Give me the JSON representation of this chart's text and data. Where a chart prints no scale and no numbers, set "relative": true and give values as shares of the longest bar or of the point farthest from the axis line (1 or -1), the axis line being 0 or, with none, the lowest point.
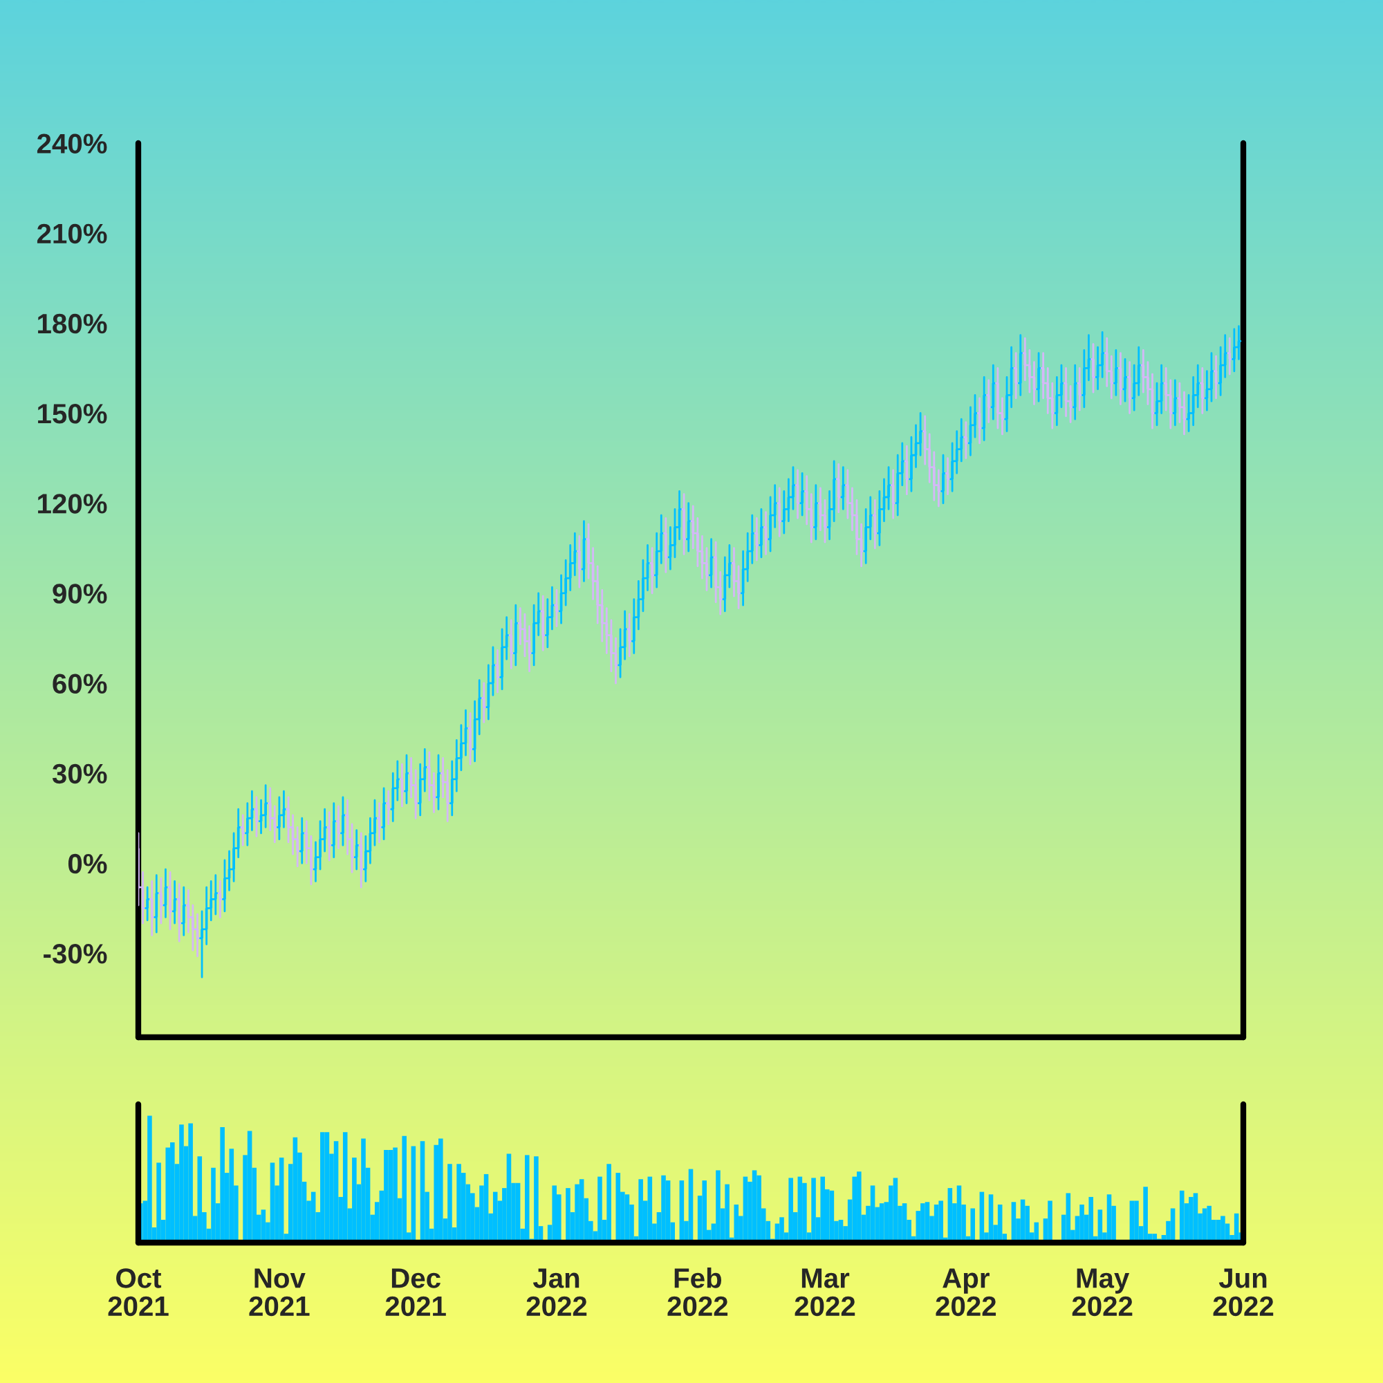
{
  "chart_data": [
    {
      "type": "candlestick",
      "xlim": [
        "2021-10-01",
        "2022-06-01"
      ],
      "ylim": [
        -58,
        240
      ],
      "tick_labels": "y",
      "yticks": [
        {
          "value": -30,
          "label": "-30%"
        },
        {
          "value": 0,
          "label": "0%"
        },
        {
          "value": 30,
          "label": "30%"
        },
        {
          "value": 60,
          "label": "60%"
        },
        {
          "value": 90,
          "label": "90%"
        },
        {
          "value": 120,
          "label": "120%"
        },
        {
          "value": 150,
          "label": "150%"
        },
        {
          "value": 180,
          "label": "180%"
        },
        {
          "value": 210,
          "label": "210%"
        },
        {
          "value": 240,
          "label": "240%"
        }
      ],
      "x": [
        "2021-10-01",
        "2021-10-02",
        "2021-10-03",
        "2021-10-04",
        "2021-10-05",
        "2021-10-06",
        "2021-10-07",
        "2021-10-08",
        "2021-10-09",
        "2021-10-10",
        "2021-10-11",
        "2021-10-12",
        "2021-10-13",
        "2021-10-14",
        "2021-10-15",
        "2021-10-16",
        "2021-10-17",
        "2021-10-18",
        "2021-10-19",
        "2021-10-20",
        "2021-10-21",
        "2021-10-22",
        "2021-10-23",
        "2021-10-24",
        "2021-10-25",
        "2021-10-26",
        "2021-10-27",
        "2021-10-28",
        "2021-10-29",
        "2021-10-30",
        "2021-10-31",
        "2021-11-01",
        "2021-11-02",
        "2021-11-03",
        "2021-11-04",
        "2021-11-05",
        "2021-11-06",
        "2021-11-07",
        "2021-11-08",
        "2021-11-09",
        "2021-11-10",
        "2021-11-11",
        "2021-11-12",
        "2021-11-13",
        "2021-11-14",
        "2021-11-15",
        "2021-11-16",
        "2021-11-17",
        "2021-11-18",
        "2021-11-19",
        "2021-11-20",
        "2021-11-21",
        "2021-11-22",
        "2021-11-23",
        "2021-11-24",
        "2021-11-25",
        "2021-11-26",
        "2021-11-27",
        "2021-11-28",
        "2021-11-29",
        "2021-11-30",
        "2021-12-01",
        "2021-12-02",
        "2021-12-03",
        "2021-12-04",
        "2021-12-05",
        "2021-12-06",
        "2021-12-07",
        "2021-12-08",
        "2021-12-09",
        "2021-12-10",
        "2021-12-11",
        "2021-12-12",
        "2021-12-13",
        "2021-12-14",
        "2021-12-15",
        "2021-12-16",
        "2021-12-17",
        "2021-12-18",
        "2021-12-19",
        "2021-12-20",
        "2021-12-21",
        "2021-12-22",
        "2021-12-23",
        "2021-12-24",
        "2021-12-25",
        "2021-12-26",
        "2021-12-27",
        "2021-12-28",
        "2021-12-29",
        "2021-12-30",
        "2021-12-31",
        "2022-01-01",
        "2022-01-02",
        "2022-01-03",
        "2022-01-04",
        "2022-01-05",
        "2022-01-06",
        "2022-01-07",
        "2022-01-08",
        "2022-01-09",
        "2022-01-10",
        "2022-01-11",
        "2022-01-12",
        "2022-01-13",
        "2022-01-14",
        "2022-01-15",
        "2022-01-16",
        "2022-01-17",
        "2022-01-18",
        "2022-01-19",
        "2022-01-20",
        "2022-01-21",
        "2022-01-22",
        "2022-01-23",
        "2022-01-24",
        "2022-01-25",
        "2022-01-26",
        "2022-01-27",
        "2022-01-28",
        "2022-01-29",
        "2022-01-30",
        "2022-01-31",
        "2022-02-01",
        "2022-02-02",
        "2022-02-03",
        "2022-02-04",
        "2022-02-05",
        "2022-02-06",
        "2022-02-07",
        "2022-02-08",
        "2022-02-09",
        "2022-02-10",
        "2022-02-11",
        "2022-02-12",
        "2022-02-13",
        "2022-02-14",
        "2022-02-15",
        "2022-02-16",
        "2022-02-17",
        "2022-02-18",
        "2022-02-19",
        "2022-02-20",
        "2022-02-21",
        "2022-02-22",
        "2022-02-23",
        "2022-02-24",
        "2022-02-25",
        "2022-02-26",
        "2022-02-27",
        "2022-02-28",
        "2022-03-01",
        "2022-03-02",
        "2022-03-03",
        "2022-03-04",
        "2022-03-05",
        "2022-03-06",
        "2022-03-07",
        "2022-03-08",
        "2022-03-09",
        "2022-03-10",
        "2022-03-11",
        "2022-03-12",
        "2022-03-13",
        "2022-03-14",
        "2022-03-15",
        "2022-03-16",
        "2022-03-17",
        "2022-03-18",
        "2022-03-19",
        "2022-03-20",
        "2022-03-21",
        "2022-03-22",
        "2022-03-23",
        "2022-03-24",
        "2022-03-25",
        "2022-03-26",
        "2022-03-27",
        "2022-03-28",
        "2022-03-29",
        "2022-03-30",
        "2022-03-31",
        "2022-04-01",
        "2022-04-02",
        "2022-04-03",
        "2022-04-04",
        "2022-04-05",
        "2022-04-06",
        "2022-04-07",
        "2022-04-08",
        "2022-04-09",
        "2022-04-10",
        "2022-04-11",
        "2022-04-12",
        "2022-04-13",
        "2022-04-14",
        "2022-04-15",
        "2022-04-16",
        "2022-04-17",
        "2022-04-18",
        "2022-04-19",
        "2022-04-20",
        "2022-04-21",
        "2022-04-22",
        "2022-04-23",
        "2022-04-24",
        "2022-04-25",
        "2022-04-26",
        "2022-04-27",
        "2022-04-28",
        "2022-04-29",
        "2022-04-30",
        "2022-05-01",
        "2022-05-02",
        "2022-05-03",
        "2022-05-04",
        "2022-05-05",
        "2022-05-06",
        "2022-05-07",
        "2022-05-08",
        "2022-05-09",
        "2022-05-10",
        "2022-05-11",
        "2022-05-12",
        "2022-05-13",
        "2022-05-14",
        "2022-05-15",
        "2022-05-16",
        "2022-05-17",
        "2022-05-18",
        "2022-05-19",
        "2022-05-20",
        "2022-05-21",
        "2022-05-22",
        "2022-05-23",
        "2022-05-24",
        "2022-05-25",
        "2022-05-26",
        "2022-05-27",
        "2022-05-28",
        "2022-05-29",
        "2022-05-30",
        "2022-05-31"
      ],
      "ohlc": [
        [
          5,
          10,
          -14,
          -8
        ],
        [
          -8,
          -3,
          -20,
          -15
        ],
        [
          -15,
          -8,
          -19,
          -12
        ],
        [
          -12,
          -6,
          -24,
          -18
        ],
        [
          -18,
          -4,
          -23,
          -10
        ],
        [
          -10,
          -5,
          -20,
          -14
        ],
        [
          -14,
          -2,
          -18,
          -8
        ],
        [
          -8,
          -3,
          -22,
          -16
        ],
        [
          -16,
          -6,
          -20,
          -12
        ],
        [
          -12,
          -7,
          -26,
          -20
        ],
        [
          -20,
          -8,
          -24,
          -14
        ],
        [
          -14,
          -9,
          -23,
          -18
        ],
        [
          -18,
          -14,
          -29,
          -22
        ],
        [
          -22,
          -17,
          -31,
          -25
        ],
        [
          -25,
          -16,
          -38,
          -22
        ],
        [
          -22,
          -8,
          -27,
          -15
        ],
        [
          -15,
          -6,
          -19,
          -12
        ],
        [
          -12,
          -4,
          -17,
          -10
        ],
        [
          -10,
          -6,
          -18,
          -12
        ],
        [
          -12,
          1,
          -16,
          -5
        ],
        [
          -5,
          4,
          -9,
          -2
        ],
        [
          -2,
          10,
          -6,
          5
        ],
        [
          5,
          18,
          2,
          12
        ],
        [
          12,
          16,
          6,
          10
        ],
        [
          10,
          20,
          6,
          15
        ],
        [
          15,
          24,
          11,
          18
        ],
        [
          18,
          22,
          9,
          14
        ],
        [
          14,
          21,
          10,
          16
        ],
        [
          16,
          26,
          12,
          20
        ],
        [
          20,
          25,
          11,
          15
        ],
        [
          15,
          19,
          7,
          12
        ],
        [
          12,
          22,
          8,
          16
        ],
        [
          16,
          24,
          12,
          18
        ],
        [
          18,
          22,
          7,
          12
        ],
        [
          12,
          16,
          3,
          8
        ],
        [
          8,
          12,
          -1,
          4
        ],
        [
          4,
          15,
          0,
          10
        ],
        [
          10,
          14,
          0,
          5
        ],
        [
          5,
          9,
          -7,
          -2
        ],
        [
          -2,
          7,
          -6,
          2
        ],
        [
          2,
          14,
          -2,
          8
        ],
        [
          8,
          18,
          4,
          12
        ],
        [
          12,
          17,
          1,
          6
        ],
        [
          6,
          20,
          2,
          14
        ],
        [
          14,
          19,
          5,
          10
        ],
        [
          10,
          22,
          6,
          16
        ],
        [
          16,
          21,
          3,
          8
        ],
        [
          8,
          13,
          -3,
          2
        ],
        [
          2,
          11,
          -2,
          6
        ],
        [
          6,
          10,
          -8,
          -2
        ],
        [
          -2,
          9,
          -6,
          4
        ],
        [
          4,
          15,
          0,
          10
        ],
        [
          10,
          21,
          6,
          15
        ],
        [
          15,
          20,
          7,
          12
        ],
        [
          12,
          25,
          8,
          20
        ],
        [
          20,
          24,
          13,
          18
        ],
        [
          18,
          30,
          14,
          25
        ],
        [
          25,
          34,
          21,
          28
        ],
        [
          28,
          33,
          19,
          24
        ],
        [
          24,
          36,
          20,
          30
        ],
        [
          30,
          35,
          22,
          26
        ],
        [
          26,
          31,
          15,
          20
        ],
        [
          20,
          33,
          16,
          28
        ],
        [
          28,
          38,
          24,
          32
        ],
        [
          32,
          37,
          21,
          26
        ],
        [
          26,
          30,
          17,
          22
        ],
        [
          22,
          36,
          18,
          30
        ],
        [
          30,
          35,
          22,
          27
        ],
        [
          27,
          31,
          14,
          20
        ],
        [
          20,
          34,
          16,
          28
        ],
        [
          28,
          41,
          24,
          35
        ],
        [
          35,
          46,
          31,
          40
        ],
        [
          40,
          51,
          36,
          45
        ],
        [
          45,
          50,
          33,
          38
        ],
        [
          38,
          54,
          34,
          48
        ],
        [
          48,
          61,
          43,
          55
        ],
        [
          55,
          60,
          47,
          52
        ],
        [
          52,
          66,
          48,
          60
        ],
        [
          60,
          72,
          56,
          66
        ],
        [
          66,
          71,
          57,
          62
        ],
        [
          62,
          78,
          58,
          72
        ],
        [
          72,
          82,
          68,
          76
        ],
        [
          76,
          81,
          65,
          70
        ],
        [
          70,
          86,
          66,
          80
        ],
        [
          80,
          85,
          73,
          78
        ],
        [
          78,
          83,
          69,
          74
        ],
        [
          74,
          79,
          64,
          70
        ],
        [
          70,
          86,
          66,
          80
        ],
        [
          80,
          90,
          76,
          84
        ],
        [
          84,
          89,
          71,
          76
        ],
        [
          76,
          88,
          72,
          82
        ],
        [
          82,
          92,
          78,
          86
        ],
        [
          86,
          91,
          79,
          84
        ],
        [
          84,
          96,
          80,
          90
        ],
        [
          90,
          101,
          86,
          95
        ],
        [
          95,
          106,
          91,
          100
        ],
        [
          100,
          110,
          96,
          104
        ],
        [
          104,
          109,
          92,
          98
        ],
        [
          98,
          114,
          94,
          108
        ],
        [
          108,
          113,
          95,
          100
        ],
        [
          100,
          105,
          88,
          94
        ],
        [
          94,
          99,
          80,
          86
        ],
        [
          86,
          91,
          74,
          80
        ],
        [
          80,
          85,
          70,
          76
        ],
        [
          76,
          81,
          64,
          70
        ],
        [
          70,
          75,
          60,
          66
        ],
        [
          66,
          78,
          62,
          72
        ],
        [
          72,
          84,
          68,
          78
        ],
        [
          78,
          83,
          69,
          74
        ],
        [
          74,
          88,
          70,
          82
        ],
        [
          82,
          94,
          78,
          88
        ],
        [
          88,
          101,
          84,
          95
        ],
        [
          95,
          106,
          91,
          100
        ],
        [
          100,
          105,
          90,
          96
        ],
        [
          96,
          110,
          92,
          104
        ],
        [
          104,
          116,
          100,
          110
        ],
        [
          110,
          115,
          97,
          102
        ],
        [
          102,
          112,
          98,
          106
        ],
        [
          106,
          118,
          102,
          112
        ],
        [
          112,
          124,
          108,
          118
        ],
        [
          118,
          123,
          103,
          108
        ],
        [
          108,
          120,
          104,
          114
        ],
        [
          114,
          119,
          105,
          110
        ],
        [
          110,
          115,
          99,
          104
        ],
        [
          104,
          109,
          95,
          100
        ],
        [
          100,
          105,
          91,
          96
        ],
        [
          96,
          108,
          92,
          102
        ],
        [
          102,
          107,
          87,
          92
        ],
        [
          92,
          97,
          83,
          88
        ],
        [
          88,
          102,
          84,
          96
        ],
        [
          96,
          106,
          92,
          100
        ],
        [
          100,
          105,
          89,
          94
        ],
        [
          94,
          99,
          85,
          90
        ],
        [
          90,
          104,
          86,
          98
        ],
        [
          98,
          110,
          94,
          104
        ],
        [
          104,
          116,
          100,
          110
        ],
        [
          110,
          115,
          101,
          106
        ],
        [
          106,
          118,
          102,
          112
        ],
        [
          112,
          117,
          103,
          108
        ],
        [
          108,
          122,
          104,
          116
        ],
        [
          116,
          126,
          112,
          120
        ],
        [
          120,
          125,
          109,
          114
        ],
        [
          114,
          124,
          110,
          118
        ],
        [
          118,
          128,
          114,
          122
        ],
        [
          122,
          132,
          118,
          126
        ],
        [
          126,
          131,
          115,
          120
        ],
        [
          120,
          130,
          116,
          124
        ],
        [
          124,
          129,
          113,
          118
        ],
        [
          118,
          123,
          107,
          112
        ],
        [
          112,
          126,
          108,
          120
        ],
        [
          120,
          125,
          111,
          116
        ],
        [
          116,
          121,
          107,
          112
        ],
        [
          112,
          124,
          108,
          118
        ],
        [
          118,
          134,
          114,
          128
        ],
        [
          128,
          133,
          117,
          122
        ],
        [
          122,
          132,
          118,
          126
        ],
        [
          126,
          131,
          115,
          120
        ],
        [
          120,
          125,
          111,
          116
        ],
        [
          116,
          121,
          103,
          108
        ],
        [
          108,
          113,
          99,
          104
        ],
        [
          104,
          118,
          100,
          112
        ],
        [
          112,
          122,
          108,
          116
        ],
        [
          116,
          121,
          105,
          110
        ],
        [
          110,
          124,
          106,
          118
        ],
        [
          118,
          128,
          114,
          122
        ],
        [
          122,
          132,
          118,
          126
        ],
        [
          126,
          131,
          115,
          120
        ],
        [
          120,
          136,
          116,
          130
        ],
        [
          130,
          140,
          126,
          134
        ],
        [
          134,
          139,
          123,
          128
        ],
        [
          128,
          142,
          124,
          136
        ],
        [
          136,
          146,
          132,
          140
        ],
        [
          140,
          150,
          136,
          144
        ],
        [
          144,
          149,
          133,
          138
        ],
        [
          138,
          143,
          127,
          132
        ],
        [
          132,
          137,
          121,
          126
        ],
        [
          126,
          131,
          119,
          124
        ],
        [
          124,
          136,
          120,
          130
        ],
        [
          130,
          135,
          123,
          128
        ],
        [
          128,
          140,
          124,
          134
        ],
        [
          134,
          144,
          130,
          138
        ],
        [
          138,
          148,
          134,
          142
        ],
        [
          142,
          147,
          135,
          140
        ],
        [
          140,
          152,
          136,
          146
        ],
        [
          146,
          156,
          142,
          150
        ],
        [
          150,
          155,
          140,
          145
        ],
        [
          145,
          162,
          141,
          156
        ],
        [
          156,
          161,
          147,
          152
        ],
        [
          152,
          166,
          148,
          160
        ],
        [
          160,
          165,
          145,
          150
        ],
        [
          150,
          155,
          143,
          148
        ],
        [
          148,
          162,
          144,
          156
        ],
        [
          156,
          172,
          152,
          165
        ],
        [
          165,
          170,
          155,
          160
        ],
        [
          160,
          176,
          156,
          170
        ],
        [
          170,
          175,
          161,
          166
        ],
        [
          166,
          171,
          157,
          162
        ],
        [
          162,
          167,
          153,
          158
        ],
        [
          158,
          170,
          154,
          165
        ],
        [
          165,
          170,
          155,
          160
        ],
        [
          160,
          165,
          150,
          155
        ],
        [
          155,
          160,
          145,
          150
        ],
        [
          150,
          162,
          146,
          156
        ],
        [
          156,
          166,
          152,
          160
        ],
        [
          160,
          165,
          149,
          154
        ],
        [
          154,
          159,
          147,
          152
        ],
        [
          152,
          166,
          148,
          160
        ],
        [
          160,
          165,
          151,
          156
        ],
        [
          156,
          171,
          152,
          165
        ],
        [
          165,
          176,
          161,
          168
        ],
        [
          168,
          173,
          157,
          162
        ],
        [
          162,
          172,
          158,
          166
        ],
        [
          166,
          177,
          162,
          170
        ],
        [
          170,
          175,
          159,
          164
        ],
        [
          164,
          169,
          155,
          160
        ],
        [
          160,
          171,
          156,
          165
        ],
        [
          165,
          170,
          153,
          158
        ],
        [
          158,
          168,
          154,
          162
        ],
        [
          162,
          167,
          150,
          155
        ],
        [
          155,
          166,
          151,
          160
        ],
        [
          160,
          172,
          156,
          166
        ],
        [
          166,
          171,
          157,
          162
        ],
        [
          162,
          167,
          153,
          158
        ],
        [
          158,
          163,
          145,
          150
        ],
        [
          150,
          160,
          146,
          154
        ],
        [
          154,
          166,
          150,
          160
        ],
        [
          160,
          165,
          151,
          156
        ],
        [
          156,
          161,
          145,
          150
        ],
        [
          150,
          161,
          146,
          155
        ],
        [
          155,
          160,
          147,
          152
        ],
        [
          152,
          157,
          143,
          148
        ],
        [
          148,
          156,
          144,
          150
        ],
        [
          150,
          162,
          146,
          156
        ],
        [
          156,
          166,
          152,
          160
        ],
        [
          160,
          165,
          150,
          155
        ],
        [
          155,
          164,
          151,
          158
        ],
        [
          158,
          170,
          154,
          164
        ],
        [
          164,
          169,
          155,
          160
        ],
        [
          160,
          172,
          156,
          166
        ],
        [
          166,
          176,
          162,
          170
        ],
        [
          170,
          175,
          163,
          168
        ],
        [
          168,
          178,
          164,
          172
        ],
        [
          172,
          179,
          168,
          174
        ]
      ],
      "colors": [
        "#d4b8f7",
        "#d4b8f7",
        "#00bfff",
        "#d4b8f7",
        "#00bfff",
        "#d4b8f7",
        "#00bfff",
        "#d4b8f7",
        "#00bfff",
        "#d4b8f7",
        "#00bfff",
        "#d4b8f7",
        "#d4b8f7",
        "#d4b8f7",
        "#00bfff",
        "#00bfff",
        "#00bfff",
        "#00bfff",
        "#d4b8f7",
        "#00bfff",
        "#00bfff",
        "#00bfff",
        "#00bfff",
        "#d4b8f7",
        "#00bfff",
        "#00bfff",
        "#d4b8f7",
        "#00bfff",
        "#00bfff",
        "#d4b8f7",
        "#d4b8f7",
        "#00bfff",
        "#00bfff",
        "#d4b8f7",
        "#d4b8f7",
        "#d4b8f7",
        "#00bfff",
        "#d4b8f7",
        "#d4b8f7",
        "#00bfff",
        "#00bfff",
        "#00bfff",
        "#d4b8f7",
        "#00bfff",
        "#d4b8f7",
        "#00bfff",
        "#d4b8f7",
        "#d4b8f7",
        "#00bfff",
        "#d4b8f7",
        "#00bfff",
        "#00bfff",
        "#00bfff",
        "#d4b8f7",
        "#00bfff",
        "#d4b8f7",
        "#00bfff",
        "#00bfff",
        "#d4b8f7",
        "#00bfff",
        "#d4b8f7",
        "#d4b8f7",
        "#00bfff",
        "#00bfff",
        "#d4b8f7",
        "#d4b8f7",
        "#00bfff",
        "#d4b8f7",
        "#d4b8f7",
        "#00bfff",
        "#00bfff",
        "#00bfff",
        "#00bfff",
        "#d4b8f7",
        "#00bfff",
        "#00bfff",
        "#d4b8f7",
        "#00bfff",
        "#00bfff",
        "#d4b8f7",
        "#00bfff",
        "#00bfff",
        "#d4b8f7",
        "#00bfff",
        "#d4b8f7",
        "#d4b8f7",
        "#d4b8f7",
        "#00bfff",
        "#00bfff",
        "#d4b8f7",
        "#00bfff",
        "#00bfff",
        "#d4b8f7",
        "#00bfff",
        "#00bfff",
        "#00bfff",
        "#00bfff",
        "#d4b8f7",
        "#00bfff",
        "#d4b8f7",
        "#d4b8f7",
        "#d4b8f7",
        "#d4b8f7",
        "#d4b8f7",
        "#d4b8f7",
        "#d4b8f7",
        "#00bfff",
        "#00bfff",
        "#d4b8f7",
        "#00bfff",
        "#00bfff",
        "#00bfff",
        "#00bfff",
        "#d4b8f7",
        "#00bfff",
        "#00bfff",
        "#d4b8f7",
        "#00bfff",
        "#00bfff",
        "#00bfff",
        "#d4b8f7",
        "#00bfff",
        "#d4b8f7",
        "#d4b8f7",
        "#d4b8f7",
        "#d4b8f7",
        "#00bfff",
        "#d4b8f7",
        "#d4b8f7",
        "#00bfff",
        "#00bfff",
        "#d4b8f7",
        "#d4b8f7",
        "#00bfff",
        "#00bfff",
        "#00bfff",
        "#d4b8f7",
        "#00bfff",
        "#d4b8f7",
        "#00bfff",
        "#00bfff",
        "#d4b8f7",
        "#00bfff",
        "#00bfff",
        "#00bfff",
        "#d4b8f7",
        "#00bfff",
        "#d4b8f7",
        "#d4b8f7",
        "#00bfff",
        "#d4b8f7",
        "#d4b8f7",
        "#00bfff",
        "#00bfff",
        "#d4b8f7",
        "#00bfff",
        "#d4b8f7",
        "#d4b8f7",
        "#d4b8f7",
        "#d4b8f7",
        "#00bfff",
        "#00bfff",
        "#d4b8f7",
        "#00bfff",
        "#00bfff",
        "#00bfff",
        "#d4b8f7",
        "#00bfff",
        "#00bfff",
        "#d4b8f7",
        "#00bfff",
        "#00bfff",
        "#00bfff",
        "#d4b8f7",
        "#d4b8f7",
        "#d4b8f7",
        "#d4b8f7",
        "#00bfff",
        "#d4b8f7",
        "#00bfff",
        "#00bfff",
        "#00bfff",
        "#d4b8f7",
        "#00bfff",
        "#00bfff",
        "#d4b8f7",
        "#00bfff",
        "#d4b8f7",
        "#00bfff",
        "#d4b8f7",
        "#d4b8f7",
        "#00bfff",
        "#00bfff",
        "#d4b8f7",
        "#00bfff",
        "#d4b8f7",
        "#d4b8f7",
        "#d4b8f7",
        "#00bfff",
        "#d4b8f7",
        "#d4b8f7",
        "#d4b8f7",
        "#00bfff",
        "#00bfff",
        "#d4b8f7",
        "#d4b8f7",
        "#00bfff",
        "#d4b8f7",
        "#00bfff",
        "#00bfff",
        "#d4b8f7",
        "#00bfff",
        "#00bfff",
        "#d4b8f7",
        "#d4b8f7",
        "#00bfff",
        "#d4b8f7",
        "#00bfff",
        "#d4b8f7",
        "#00bfff",
        "#00bfff",
        "#d4b8f7",
        "#d4b8f7",
        "#d4b8f7",
        "#00bfff",
        "#00bfff",
        "#d4b8f7",
        "#d4b8f7",
        "#00bfff",
        "#d4b8f7",
        "#d4b8f7",
        "#00bfff",
        "#00bfff",
        "#00bfff",
        "#d4b8f7",
        "#00bfff",
        "#00bfff",
        "#d4b8f7",
        "#00bfff",
        "#00bfff",
        "#d4b8f7",
        "#00bfff",
        "#00bfff"
      ]
    },
    {
      "type": "bar",
      "relative": true,
      "color": "#00bfff",
      "xlim": [
        "2021-10-01",
        "2022-06-01"
      ],
      "tick_labels": "x",
      "xticks": [
        {
          "value": "2021-10-01",
          "label": "Oct\n2021"
        },
        {
          "value": "2021-11-01",
          "label": "Nov\n2021"
        },
        {
          "value": "2021-12-01",
          "label": "Dec\n2021"
        },
        {
          "value": "2022-01-01",
          "label": "Jan\n2022"
        },
        {
          "value": "2022-02-01",
          "label": "Feb\n2022"
        },
        {
          "value": "2022-03-01",
          "label": "Mar\n2022"
        },
        {
          "value": "2022-04-01",
          "label": "Apr\n2022"
        },
        {
          "value": "2022-05-01",
          "label": "May\n2022"
        },
        {
          "value": "2022-06-01",
          "label": "Jun\n2022"
        }
      ],
      "x": [
        "2021-10-01",
        "2021-10-02",
        "2021-10-03",
        "2021-10-04",
        "2021-10-05",
        "2021-10-06",
        "2021-10-07",
        "2021-10-08",
        "2021-10-09",
        "2021-10-10",
        "2021-10-11",
        "2021-10-12",
        "2021-10-13",
        "2021-10-14",
        "2021-10-15",
        "2021-10-16",
        "2021-10-17",
        "2021-10-18",
        "2021-10-19",
        "2021-10-20",
        "2021-10-21",
        "2021-10-22",
        "2021-10-23",
        "2021-10-24",
        "2021-10-25",
        "2021-10-26",
        "2021-10-27",
        "2021-10-28",
        "2021-10-29",
        "2021-10-30",
        "2021-10-31",
        "2021-11-01",
        "2021-11-02",
        "2021-11-03",
        "2021-11-04",
        "2021-11-05",
        "2021-11-06",
        "2021-11-07",
        "2021-11-08",
        "2021-11-09",
        "2021-11-10",
        "2021-11-11",
        "2021-11-12",
        "2021-11-13",
        "2021-11-14",
        "2021-11-15",
        "2021-11-16",
        "2021-11-17",
        "2021-11-18",
        "2021-11-19",
        "2021-11-20",
        "2021-11-21",
        "2021-11-22",
        "2021-11-23",
        "2021-11-24",
        "2021-11-25",
        "2021-11-26",
        "2021-11-27",
        "2021-11-28",
        "2021-11-29",
        "2021-11-30",
        "2021-12-01",
        "2021-12-02",
        "2021-12-03",
        "2021-12-04",
        "2021-12-05",
        "2021-12-06",
        "2021-12-07",
        "2021-12-08",
        "2021-12-09",
        "2021-12-10",
        "2021-12-11",
        "2021-12-12",
        "2021-12-13",
        "2021-12-14",
        "2021-12-15",
        "2021-12-16",
        "2021-12-17",
        "2021-12-18",
        "2021-12-19",
        "2021-12-20",
        "2021-12-21",
        "2021-12-22",
        "2021-12-23",
        "2021-12-24",
        "2021-12-25",
        "2021-12-26",
        "2021-12-27",
        "2021-12-28",
        "2021-12-29",
        "2021-12-30",
        "2021-12-31",
        "2022-01-01",
        "2022-01-02",
        "2022-01-03",
        "2022-01-04",
        "2022-01-05",
        "2022-01-06",
        "2022-01-07",
        "2022-01-08",
        "2022-01-09",
        "2022-01-10",
        "2022-01-11",
        "2022-01-12",
        "2022-01-13",
        "2022-01-14",
        "2022-01-15",
        "2022-01-16",
        "2022-01-17",
        "2022-01-18",
        "2022-01-19",
        "2022-01-20",
        "2022-01-21",
        "2022-01-22",
        "2022-01-23",
        "2022-01-24",
        "2022-01-25",
        "2022-01-26",
        "2022-01-27",
        "2022-01-28",
        "2022-01-29",
        "2022-01-30",
        "2022-01-31",
        "2022-02-01",
        "2022-02-02",
        "2022-02-03",
        "2022-02-04",
        "2022-02-05",
        "2022-02-06",
        "2022-02-07",
        "2022-02-08",
        "2022-02-09",
        "2022-02-10",
        "2022-02-11",
        "2022-02-12",
        "2022-02-13",
        "2022-02-14",
        "2022-02-15",
        "2022-02-16",
        "2022-02-17",
        "2022-02-18",
        "2022-02-19",
        "2022-02-20",
        "2022-02-21",
        "2022-02-22",
        "2022-02-23",
        "2022-02-24",
        "2022-02-25",
        "2022-02-26",
        "2022-02-27",
        "2022-02-28",
        "2022-03-01",
        "2022-03-02",
        "2022-03-03",
        "2022-03-04",
        "2022-03-05",
        "2022-03-06",
        "2022-03-07",
        "2022-03-08",
        "2022-03-09",
        "2022-03-10",
        "2022-03-11",
        "2022-03-12",
        "2022-03-13",
        "2022-03-14",
        "2022-03-15",
        "2022-03-16",
        "2022-03-17",
        "2022-03-18",
        "2022-03-19",
        "2022-03-20",
        "2022-03-21",
        "2022-03-22",
        "2022-03-23",
        "2022-03-24",
        "2022-03-25",
        "2022-03-26",
        "2022-03-27",
        "2022-03-28",
        "2022-03-29",
        "2022-03-30",
        "2022-03-31",
        "2022-04-01",
        "2022-04-02",
        "2022-04-03",
        "2022-04-04",
        "2022-04-05",
        "2022-04-06",
        "2022-04-07",
        "2022-04-08",
        "2022-04-09",
        "2022-04-10",
        "2022-04-11",
        "2022-04-12",
        "2022-04-13",
        "2022-04-14",
        "2022-04-15",
        "2022-04-16",
        "2022-04-17",
        "2022-04-18",
        "2022-04-19",
        "2022-04-20",
        "2022-04-21",
        "2022-04-22",
        "2022-04-23",
        "2022-04-24",
        "2022-04-25",
        "2022-04-26",
        "2022-04-27",
        "2022-04-28",
        "2022-04-29",
        "2022-04-30",
        "2022-05-01",
        "2022-05-02",
        "2022-05-03",
        "2022-05-04",
        "2022-05-05",
        "2022-05-06",
        "2022-05-07",
        "2022-05-08",
        "2022-05-09",
        "2022-05-10",
        "2022-05-11",
        "2022-05-12",
        "2022-05-13",
        "2022-05-14",
        "2022-05-15",
        "2022-05-16",
        "2022-05-17",
        "2022-05-18",
        "2022-05-19",
        "2022-05-20",
        "2022-05-21",
        "2022-05-22",
        "2022-05-23",
        "2022-05-24",
        "2022-05-25",
        "2022-05-26",
        "2022-05-27",
        "2022-05-28",
        "2022-05-29",
        "2022-05-30",
        "2022-05-31"
      ],
      "values": [
        0.31,
        0.33,
        1.0,
        0.12,
        0.63,
        0.18,
        0.75,
        0.79,
        0.62,
        0.93,
        0.76,
        0.94,
        0.21,
        0.68,
        0.24,
        0.11,
        0.59,
        0.31,
        0.91,
        0.55,
        0.74,
        0.45,
        0,
        0.69,
        0.88,
        0.59,
        0.22,
        0.26,
        0.16,
        0.63,
        0.45,
        0.67,
        0.07,
        0.62,
        0.83,
        0.71,
        0.48,
        0.33,
        0.4,
        0.24,
        0.87,
        0.87,
        0.7,
        0.8,
        0.36,
        0.87,
        0.27,
        0.67,
        0.46,
        0.82,
        0.59,
        0.22,
        0.32,
        0.41,
        0.73,
        0.73,
        0.75,
        0.35,
        0.84,
        0.08,
        0.76,
        0,
        0.8,
        0.4,
        0.11,
        0.77,
        0.82,
        0.19,
        0.62,
        0.12,
        0.62,
        0.55,
        0.46,
        0.39,
        0.28,
        0.45,
        0.54,
        0.23,
        0.4,
        0.33,
        0.43,
        0.7,
        0.47,
        0.47,
        0.11,
        0.69,
        0.03,
        0.68,
        0.13,
        0,
        0.14,
        0.45,
        0.38,
        0,
        0.43,
        0.24,
        0.46,
        0.5,
        0.35,
        0.17,
        0.09,
        0.52,
        0.18,
        0.62,
        0,
        0.55,
        0.4,
        0.38,
        0.3,
        0.05,
        0.5,
        0.33,
        0.52,
        0.15,
        0.24,
        0.53,
        0.49,
        0.16,
        null,
        0.49,
        0.17,
        0.58,
        0,
        0.37,
        0.49,
        0.1,
        0.15,
        0.57,
        0.27,
        0.46,
        0.04,
        0.3,
        0.21,
        0.52,
        0.48,
        0.57,
        0.53,
        0.27,
        0.17,
        0.03,
        0.15,
        0.2,
        0.08,
        0.51,
        0.24,
        0.52,
        0.47,
        0.08,
        0.51,
        0.2,
        0.52,
        0.42,
        0.41,
        0.17,
        0.18,
        0.13,
        0.34,
        0.52,
        0.56,
        0.22,
        0.29,
        0.45,
        0.28,
        0.31,
        0.32,
        0.45,
        0.51,
        0.29,
        0.31,
        0.18,
        0.05,
        0.25,
        0.31,
        0.32,
        0.21,
        0.3,
        0.33,
        0.04,
        0.43,
        0.31,
        0.45,
        0.3,
        0.05,
        0.27,
        0,
        0.4,
        0.08,
        0.38,
        0.14,
        0.3,
        0.07,
        0,
        0.32,
        0.19,
        0.34,
        0.29,
        0.08,
        0.16,
        0,
        0.19,
        0.33,
        null,
        0,
        0.22,
        0.39,
        0.1,
        0.21,
        0.3,
        0.22,
        0.36,
        0.05,
        0.26,
        0.08,
        0.38,
        0.29,
        null,
        null,
        0,
        0.33,
        0.33,
        0.13,
        0.44,
        0.07,
        0.07,
        0.03,
        0.06,
        0.17,
        0.27,
        0,
        0.41,
        0.31,
        0.36,
        0.39,
        0.23,
        0.27,
        0.29,
        0.18,
        0.18,
        0.21,
        0.15,
        0.06,
        0.23,
        0.08
      ]
    }
  ]
}
